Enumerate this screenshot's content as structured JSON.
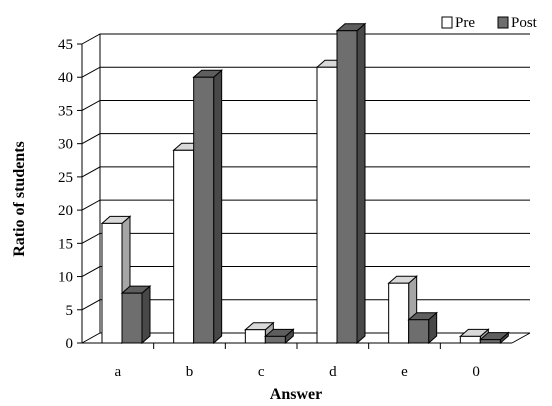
{
  "chart_data": {
    "type": "bar",
    "title": "",
    "xlabel": "Answer",
    "ylabel": "Ratio of students",
    "ylim": [
      0,
      45
    ],
    "yticks": [
      0,
      5,
      10,
      15,
      20,
      25,
      30,
      35,
      40,
      45
    ],
    "categories": [
      "a",
      "b",
      "c",
      "d",
      "e",
      "0"
    ],
    "series": [
      {
        "name": "Pre",
        "values": [
          18,
          29,
          2,
          41.5,
          9,
          1
        ],
        "color": "#ffffff"
      },
      {
        "name": "Post",
        "values": [
          7.5,
          40,
          1,
          47,
          3.5,
          0.5
        ],
        "color": "#6e6e6e"
      }
    ],
    "grid": true,
    "legend": "top-right",
    "style": "3d-clustered"
  }
}
